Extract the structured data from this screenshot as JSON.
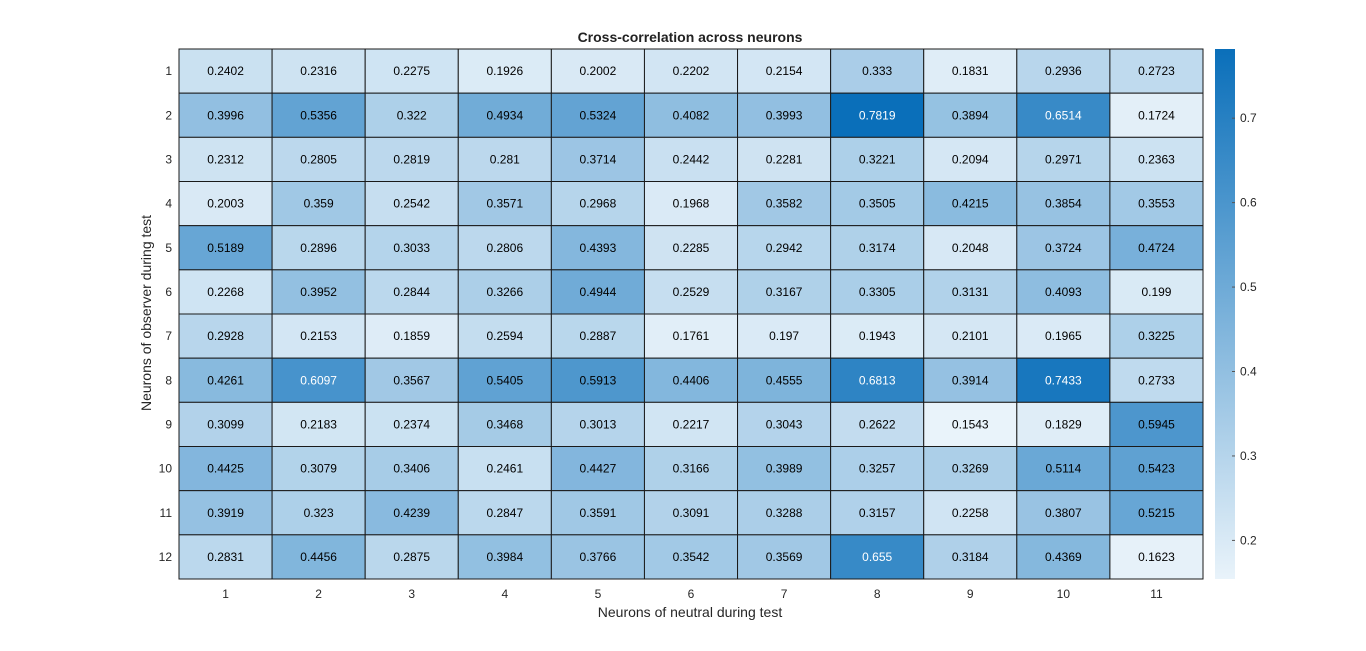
{
  "chart_data": {
    "type": "heatmap",
    "title": "Cross-correlation across neurons",
    "xlabel": "Neurons of neutral during test",
    "ylabel": "Neurons of observer during test",
    "x_categories": [
      "1",
      "2",
      "3",
      "4",
      "5",
      "6",
      "7",
      "8",
      "9",
      "10",
      "11"
    ],
    "y_categories": [
      "1",
      "2",
      "3",
      "4",
      "5",
      "6",
      "7",
      "8",
      "9",
      "10",
      "11",
      "12"
    ],
    "values": [
      [
        "0.2402",
        "0.2316",
        "0.2275",
        "0.1926",
        "0.2002",
        "0.2202",
        "0.2154",
        "0.333",
        "0.1831",
        "0.2936",
        "0.2723"
      ],
      [
        "0.3996",
        "0.5356",
        "0.322",
        "0.4934",
        "0.5324",
        "0.4082",
        "0.3993",
        "0.7819",
        "0.3894",
        "0.6514",
        "0.1724"
      ],
      [
        "0.2312",
        "0.2805",
        "0.2819",
        "0.281",
        "0.3714",
        "0.2442",
        "0.2281",
        "0.3221",
        "0.2094",
        "0.2971",
        "0.2363"
      ],
      [
        "0.2003",
        "0.359",
        "0.2542",
        "0.3571",
        "0.2968",
        "0.1968",
        "0.3582",
        "0.3505",
        "0.4215",
        "0.3854",
        "0.3553"
      ],
      [
        "0.5189",
        "0.2896",
        "0.3033",
        "0.2806",
        "0.4393",
        "0.2285",
        "0.2942",
        "0.3174",
        "0.2048",
        "0.3724",
        "0.4724"
      ],
      [
        "0.2268",
        "0.3952",
        "0.2844",
        "0.3266",
        "0.4944",
        "0.2529",
        "0.3167",
        "0.3305",
        "0.3131",
        "0.4093",
        "0.199"
      ],
      [
        "0.2928",
        "0.2153",
        "0.1859",
        "0.2594",
        "0.2887",
        "0.1761",
        "0.197",
        "0.1943",
        "0.2101",
        "0.1965",
        "0.3225"
      ],
      [
        "0.4261",
        "0.6097",
        "0.3567",
        "0.5405",
        "0.5913",
        "0.4406",
        "0.4555",
        "0.6813",
        "0.3914",
        "0.7433",
        "0.2733"
      ],
      [
        "0.3099",
        "0.2183",
        "0.2374",
        "0.3468",
        "0.3013",
        "0.2217",
        "0.3043",
        "0.2622",
        "0.1543",
        "0.1829",
        "0.5945"
      ],
      [
        "0.4425",
        "0.3079",
        "0.3406",
        "0.2461",
        "0.4427",
        "0.3166",
        "0.3989",
        "0.3257",
        "0.3269",
        "0.5114",
        "0.5423"
      ],
      [
        "0.3919",
        "0.323",
        "0.4239",
        "0.2847",
        "0.3591",
        "0.3091",
        "0.3288",
        "0.3157",
        "0.2258",
        "0.3807",
        "0.5215"
      ],
      [
        "0.2831",
        "0.4456",
        "0.2875",
        "0.3984",
        "0.3766",
        "0.3542",
        "0.3569",
        "0.655",
        "0.3184",
        "0.4369",
        "0.1623"
      ]
    ],
    "colorbar": {
      "range": [
        0.1543,
        0.7819
      ],
      "ticks": [
        "0.2",
        "0.3",
        "0.4",
        "0.5",
        "0.6",
        "0.7"
      ]
    },
    "colors": {
      "low": "#e9f3fa",
      "high": "#0a6fba",
      "text_dark": "#000000",
      "text_light": "#ffffff"
    }
  }
}
